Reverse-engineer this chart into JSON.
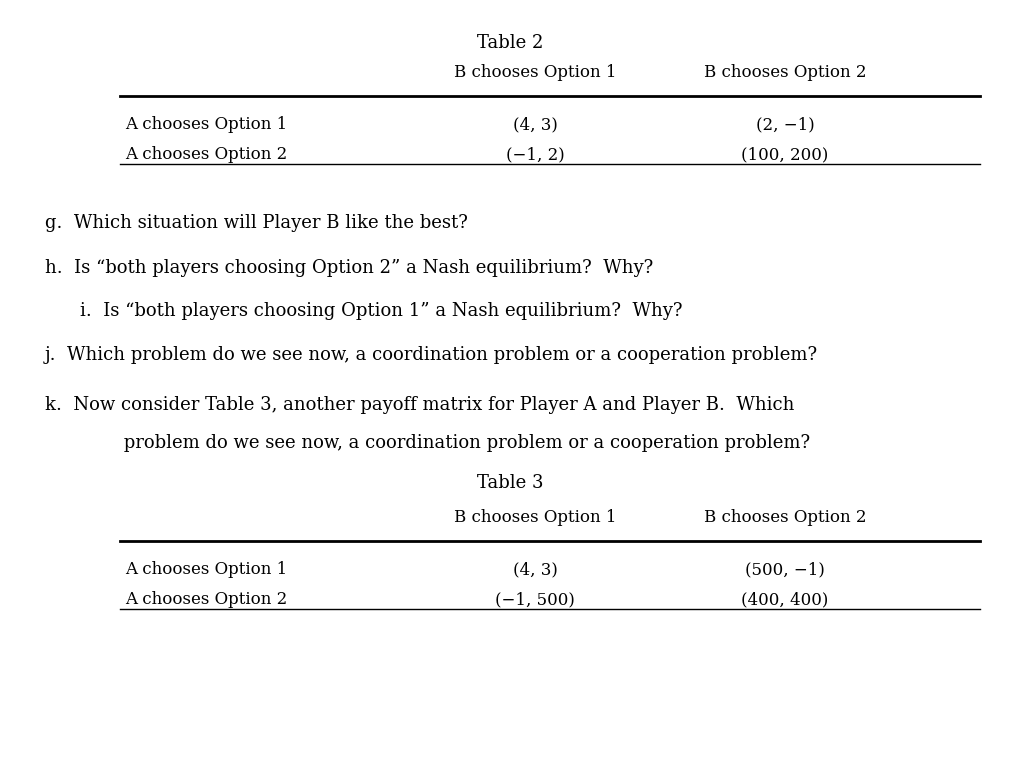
{
  "bg_color": "#ffffff",
  "table2_title": "Table 2",
  "table3_title": "Table 3",
  "col_headers": [
    "B chooses Option 1",
    "B chooses Option 2"
  ],
  "row_headers": [
    "A chooses Option 1",
    "A chooses Option 2"
  ],
  "table2_data": [
    [
      "(4, 3)",
      "(2, −1)"
    ],
    [
      "(−1, 2)",
      "(100, 200)"
    ]
  ],
  "table3_data": [
    [
      "(4, 3)",
      "(500, −1)"
    ],
    [
      "(−1, 500)",
      "(400, 400)"
    ]
  ],
  "questions": [
    "g.  Which situation will Player B like the best?",
    "h.  Is “both players choosing Option 2” a Nash equilibrium?  Why?",
    "i.  Is “both players choosing Option 1” a Nash equilibrium?  Why?",
    "j.  Which problem do we see now, a coordination problem or a cooperation problem?",
    "k.  Now consider Table 3, another payoff matrix for Player A and Player B.  Which",
    "     problem do we see now, a coordination problem or a cooperation problem?"
  ],
  "font_size_title": 13,
  "font_size_header": 12,
  "font_size_cell": 12,
  "font_size_question": 13
}
